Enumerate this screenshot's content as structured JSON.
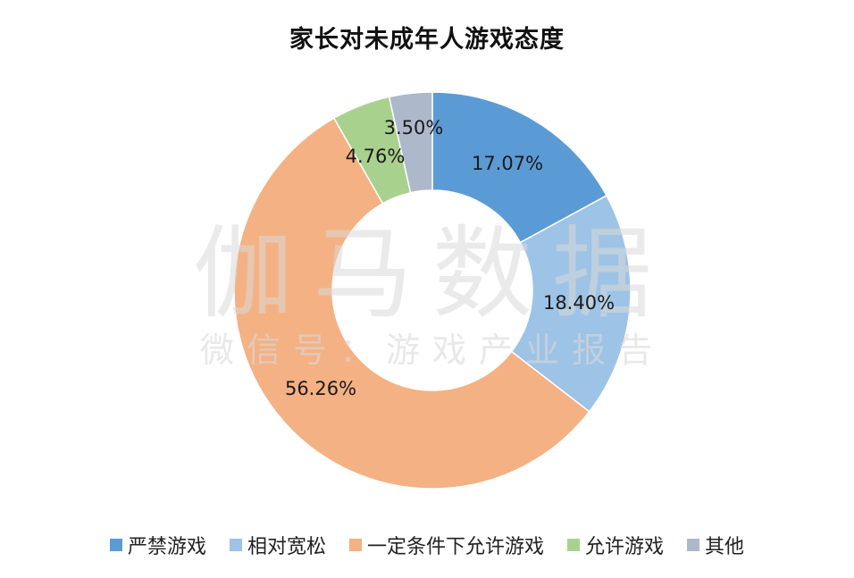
{
  "title": "家长对未成年人游戏态度",
  "watermark": {
    "main": "伽马数据",
    "sub": "微信号：游戏产业报告"
  },
  "chart_data": {
    "type": "pie",
    "subtype": "donut",
    "title": "家长对未成年人游戏态度",
    "categories": [
      "严禁游戏",
      "相对宽松",
      "一定条件下允许游戏",
      "允许游戏",
      "其他"
    ],
    "values": [
      17.07,
      18.4,
      56.26,
      4.76,
      3.5
    ],
    "labels": [
      "17.07%",
      "18.40%",
      "56.26%",
      "4.76%",
      "3.50%"
    ],
    "colors": [
      "#5B9BD5",
      "#9DC3E6",
      "#F4B183",
      "#A9D18E",
      "#ADB9CA"
    ],
    "legend_position": "bottom",
    "start_angle": "12 o'clock, clockwise"
  },
  "legend": [
    {
      "label": "严禁游戏",
      "color": "#5B9BD5"
    },
    {
      "label": "相对宽松",
      "color": "#9DC3E6"
    },
    {
      "label": "一定条件下允许游戏",
      "color": "#F4B183"
    },
    {
      "label": "允许游戏",
      "color": "#A9D18E"
    },
    {
      "label": "其他",
      "color": "#ADB9CA"
    }
  ]
}
